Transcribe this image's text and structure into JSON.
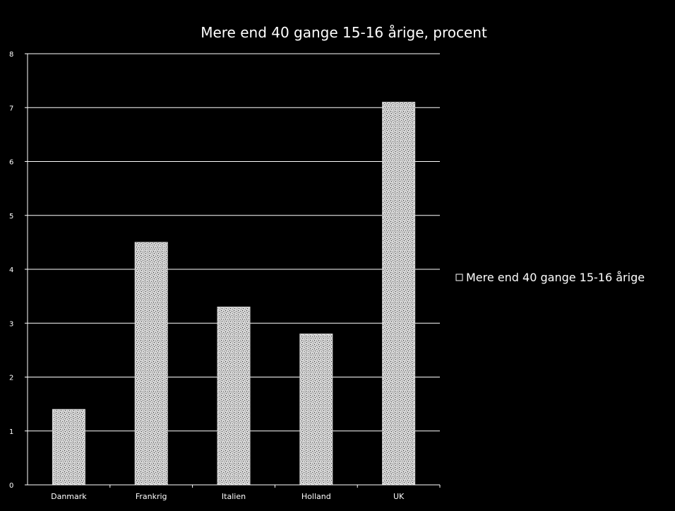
{
  "chart_data": {
    "type": "bar",
    "title": "Mere end 40 gange 15-16 årige, procent",
    "categories": [
      "Danmark",
      "Frankrig",
      "Italien",
      "Holland",
      "UK"
    ],
    "series": [
      {
        "name": "Mere end 40 gange 15-16 årige",
        "values": [
          1.4,
          4.5,
          3.3,
          2.8,
          7.1
        ]
      }
    ],
    "ylim": [
      0,
      8
    ],
    "yticks": [
      0,
      1,
      2,
      3,
      4,
      5,
      6,
      7,
      8
    ],
    "grid": true,
    "legend": "right",
    "colors": {
      "background": "#000000",
      "bar": "#d9d9d9",
      "grid": "#ffffff",
      "text": "#ffffff"
    }
  }
}
